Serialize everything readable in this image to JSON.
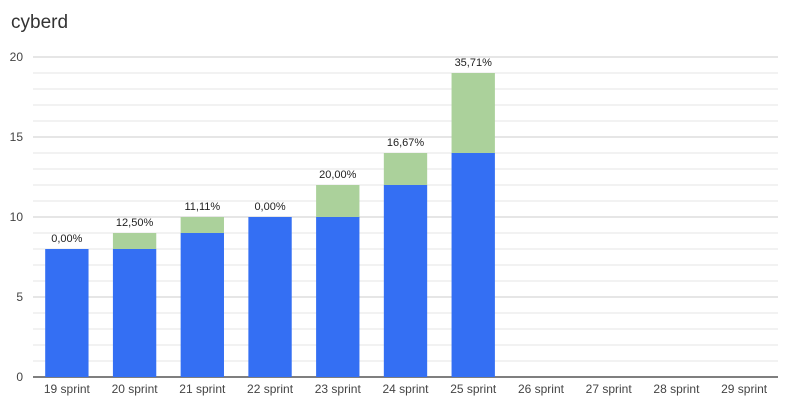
{
  "chart_data": {
    "type": "bar",
    "stacked": true,
    "title": "cyberd",
    "categories": [
      "19 sprint",
      "20 sprint",
      "21 sprint",
      "22 sprint",
      "23 sprint",
      "24 sprint",
      "25 sprint",
      "26 sprint",
      "27 sprint",
      "28 sprint",
      "29 sprint"
    ],
    "series": [
      {
        "values": [
          8,
          8,
          9,
          10,
          10,
          12,
          14,
          null,
          null,
          null,
          null
        ],
        "color": "#346ff3"
      },
      {
        "values": [
          0,
          1,
          1,
          0,
          2,
          2,
          5,
          null,
          null,
          null,
          null
        ],
        "color": "#abd19b"
      }
    ],
    "data_labels": [
      "0,00%",
      "12,50%",
      "11,11%",
      "0,00%",
      "20,00%",
      "16,67%",
      "35,71%",
      "",
      "",
      "",
      ""
    ],
    "ylim": [
      0,
      20
    ],
    "yticks": [
      0,
      5,
      10,
      15,
      20
    ],
    "grid": true,
    "xlabel": "",
    "ylabel": ""
  }
}
